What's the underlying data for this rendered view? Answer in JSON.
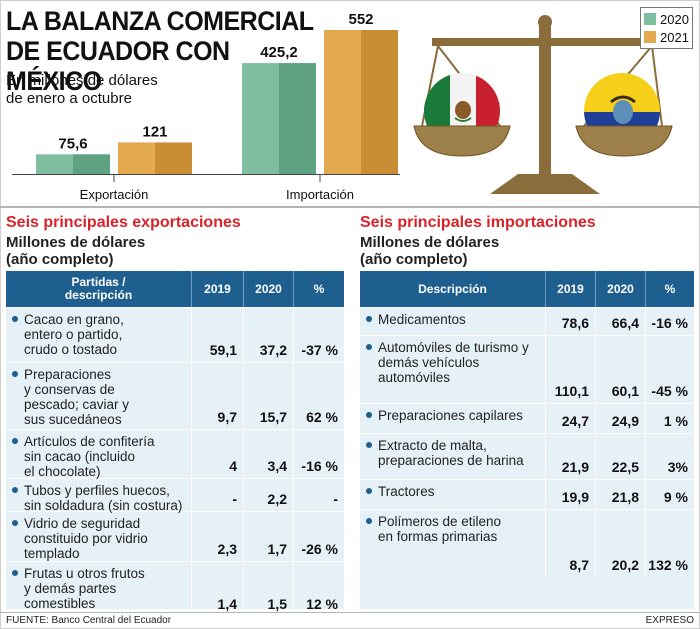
{
  "header": {
    "title_line1": "LA BALANZA COMERCIAL",
    "title_line2": "DE ECUADOR CON MÉXICO",
    "subtitle_line1": "En millones de dólares",
    "subtitle_line2": "de enero a octubre"
  },
  "colors": {
    "series_2020": "#7fbf9f",
    "series_2021": "#e3a94e",
    "table_header": "#1e5f8f",
    "table_body": "#e6f0f7",
    "section_title": "#d8232a"
  },
  "chart_data": {
    "type": "bar",
    "title": "LA BALANZA COMERCIAL DE ECUADOR CON MÉXICO",
    "subtitle": "En millones de dólares de enero a octubre",
    "categories": [
      "Exportación",
      "Importación"
    ],
    "series": [
      {
        "name": "2020",
        "values": [
          75.6,
          425.2
        ],
        "labels": [
          "75,6",
          "425,2"
        ]
      },
      {
        "name": "2021",
        "values": [
          121,
          552
        ],
        "labels": [
          "121",
          "552"
        ]
      }
    ],
    "legend": [
      "2020",
      "2021"
    ],
    "legend_position": "top-right",
    "ylim": [
      0,
      552
    ],
    "grid": false
  },
  "exports": {
    "title": "Seis principales exportaciones",
    "sub_line1": "Millones de dólares",
    "sub_line2": "(año completo)",
    "headers": {
      "desc_line1": "Partidas /",
      "desc_line2": "descripción",
      "y2019": "2019",
      "y2020": "2020",
      "pct": "%"
    },
    "rows": [
      {
        "desc": [
          "Cacao en grano,",
          "entero o partido,",
          "crudo o tostado"
        ],
        "v2019": "59,1",
        "v2020": "37,2",
        "pct": "-37 %"
      },
      {
        "desc": [
          "Preparaciones",
          "y conservas de",
          "pescado; caviar y",
          "sus sucedáneos"
        ],
        "v2019": "9,7",
        "v2020": "15,7",
        "pct": "62 %"
      },
      {
        "desc": [
          "Artículos de confitería",
          "sin cacao (incluido",
          "el chocolate)"
        ],
        "v2019": "4",
        "v2020": "3,4",
        "pct": "-16 %"
      },
      {
        "desc": [
          "Tubos y perfiles huecos,",
          "sin soldadura (sin costura)"
        ],
        "v2019": "-",
        "v2020": "2,2",
        "pct": "-"
      },
      {
        "desc": [
          "Vidrio de seguridad",
          "constituido por vidrio",
          "templado"
        ],
        "v2019": "2,3",
        "v2020": "1,7",
        "pct": "-26 %"
      },
      {
        "desc": [
          "Frutas u otros frutos",
          "y demás partes",
          "comestibles"
        ],
        "v2019": "1,4",
        "v2020": "1,5",
        "pct": "12 %"
      }
    ]
  },
  "imports": {
    "title": "Seis principales importaciones",
    "sub_line1": "Millones de dólares",
    "sub_line2": "(año completo)",
    "headers": {
      "desc": "Descripción",
      "y2019": "2019",
      "y2020": "2020",
      "pct": "%"
    },
    "rows": [
      {
        "desc": [
          "Medicamentos"
        ],
        "v2019": "78,6",
        "v2020": "66,4",
        "pct": "-16 %"
      },
      {
        "desc": [
          "Automóviles de turismo y",
          "demás vehículos",
          "automóviles"
        ],
        "v2019": "110,1",
        "v2020": "60,1",
        "pct": "-45 %"
      },
      {
        "desc": [
          "Preparaciones capilares"
        ],
        "v2019": "24,7",
        "v2020": "24,9",
        "pct": "1 %"
      },
      {
        "desc": [
          "Extracto de malta,",
          "preparaciones de harina"
        ],
        "v2019": "21,9",
        "v2020": "22,5",
        "pct": "3%"
      },
      {
        "desc": [
          "Tractores"
        ],
        "v2019": "19,9",
        "v2020": "21,8",
        "pct": "9 %"
      },
      {
        "desc": [
          "Polímeros de etileno",
          "en formas primarias"
        ],
        "v2019": "8,7",
        "v2020": "20,2",
        "pct": "132 %"
      }
    ]
  },
  "footer": {
    "source": "FUENTE: Banco Central del Ecuador",
    "brand": "EXPRESO"
  },
  "illustration": {
    "name": "balance-scale-illustration",
    "left_flag": "mexico-flag",
    "right_flag": "ecuador-flag"
  }
}
